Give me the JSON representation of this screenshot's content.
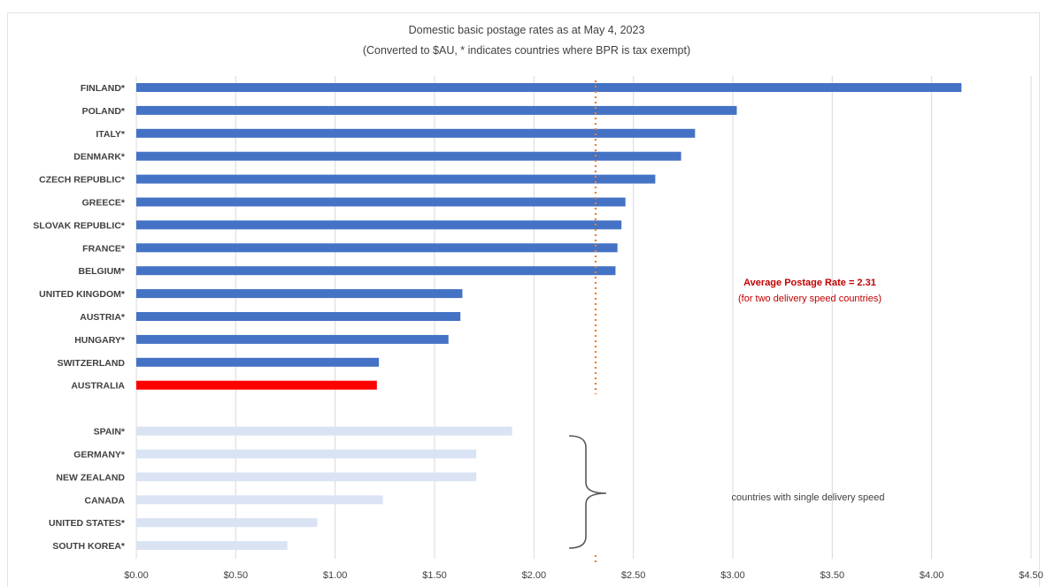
{
  "chart_data": {
    "type": "bar",
    "orientation": "horizontal",
    "title": "Domestic basic postage rates as at May 4, 2023",
    "subtitle": "(Converted to $AU, * indicates countries where BPR is tax exempt)",
    "xlim": [
      0,
      4.5
    ],
    "x_tick_labels": [
      "$0.00",
      "$0.50",
      "$1.00",
      "$1.50",
      "$2.00",
      "$2.50",
      "$3.00",
      "$3.50",
      "$4.00",
      "$4.50"
    ],
    "grid": true,
    "groups": [
      {
        "items": [
          {
            "label": "FINLAND*",
            "value": 4.15
          },
          {
            "label": "POLAND*",
            "value": 3.02
          },
          {
            "label": "ITALY*",
            "value": 2.81
          },
          {
            "label": "DENMARK*",
            "value": 2.74
          },
          {
            "label": "CZECH REPUBLIC*",
            "value": 2.61
          },
          {
            "label": "GREECE*",
            "value": 2.46
          },
          {
            "label": "SLOVAK REPUBLIC*",
            "value": 2.44
          },
          {
            "label": "FRANCE*",
            "value": 2.42
          },
          {
            "label": "BELGIUM*",
            "value": 2.41
          },
          {
            "label": "UNITED KINGDOM*",
            "value": 1.64
          },
          {
            "label": "AUSTRIA*",
            "value": 1.63
          },
          {
            "label": "HUNGARY*",
            "value": 1.57
          },
          {
            "label": "SWITZERLAND",
            "value": 1.22
          },
          {
            "label": "AUSTRALIA",
            "value": 1.21,
            "highlight": true
          }
        ]
      },
      {
        "items": [
          {
            "label": "SPAIN*",
            "value": 1.89
          },
          {
            "label": "GERMANY*",
            "value": 1.71
          },
          {
            "label": "NEW ZEALAND",
            "value": 1.71
          },
          {
            "label": "CANADA",
            "value": 1.24
          },
          {
            "label": "UNITED STATES*",
            "value": 0.91
          },
          {
            "label": "SOUTH KOREA*",
            "value": 0.76
          }
        ]
      }
    ],
    "reference_line": {
      "value": 2.31,
      "style": "dotted"
    },
    "annotations": {
      "average_label": "Average Postage Rate = 2.31",
      "average_sublabel": "(for two delivery speed countries)",
      "single_speed_label": "countries with single delivery speed"
    },
    "colors": {
      "primary_bar": "#4472c4",
      "highlight_bar": "#ff0000",
      "single_speed_bar": "#dae3f3",
      "reference_line": "#ed7d31",
      "annotation_text": "#c00000",
      "label_text": "#404040",
      "grid": "#d9d9d9",
      "brace": "#595959"
    }
  }
}
